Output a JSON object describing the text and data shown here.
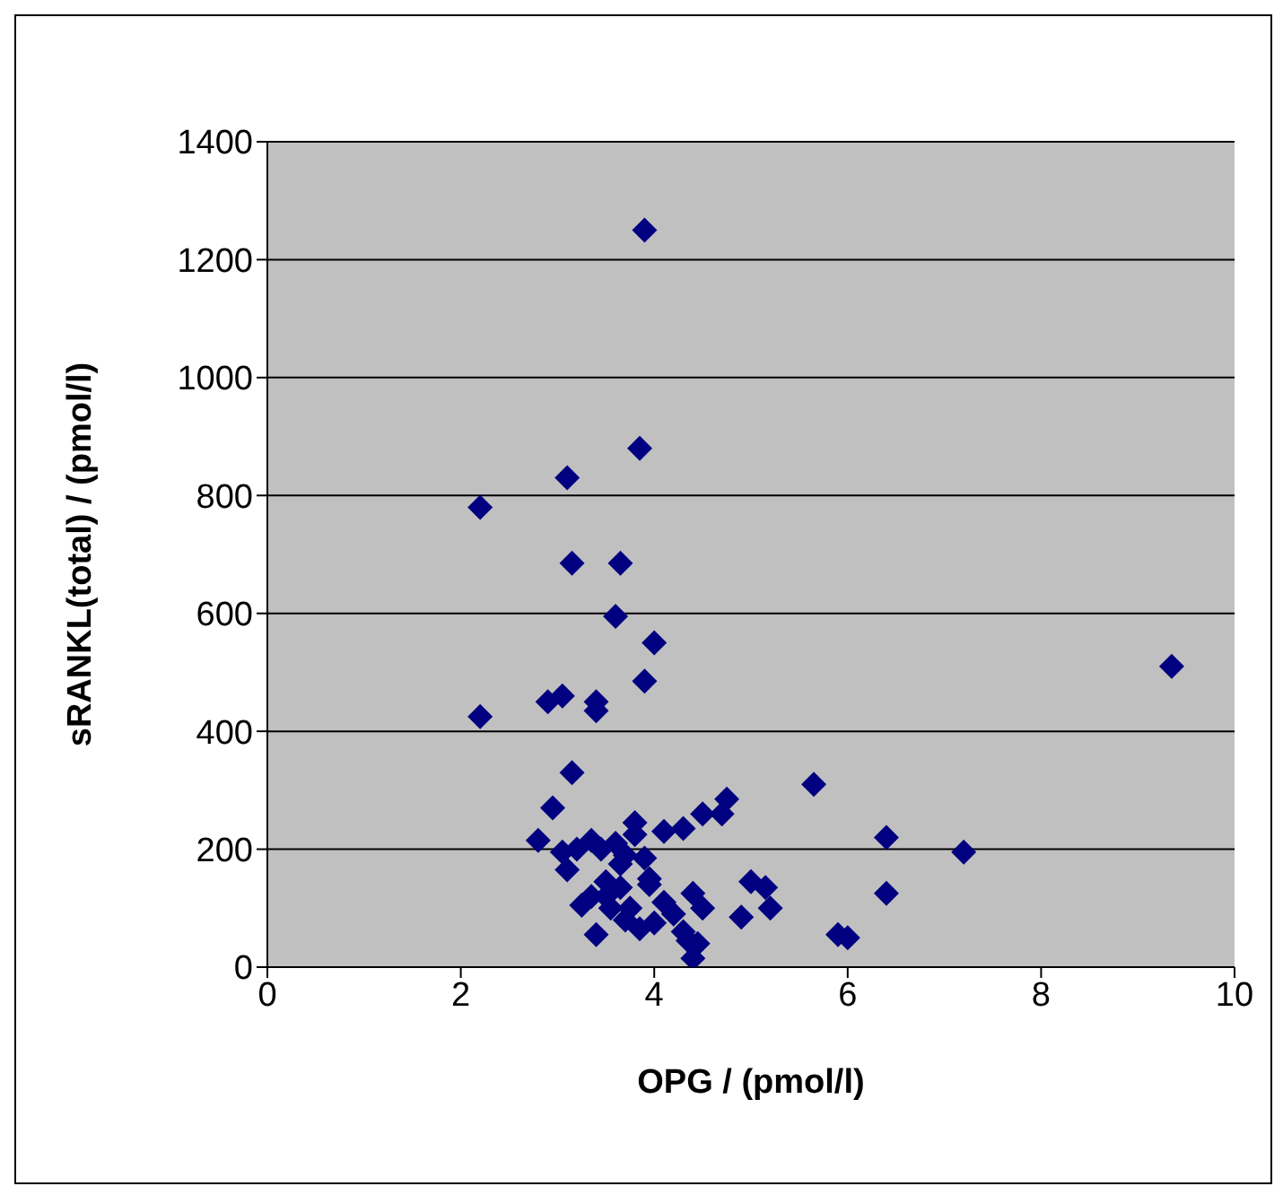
{
  "chart_data": {
    "type": "scatter",
    "xlabel": "OPG / (pmol/l)",
    "ylabel": "sRANKL(total) / (pmol/l)",
    "x": [
      2.2,
      2.2,
      2.9,
      3.05,
      3.4,
      3.4,
      3.15,
      3.1,
      3.15,
      3.65,
      3.6,
      3.9,
      3.85,
      4.0,
      3.9,
      9.35,
      2.95,
      2.8,
      3.05,
      3.1,
      3.2,
      3.35,
      3.45,
      3.6,
      3.65,
      3.7,
      3.8,
      3.8,
      3.9,
      3.95,
      4.1,
      4.3,
      4.5,
      4.7,
      4.75,
      5.65,
      6.4,
      7.2,
      6.4,
      3.25,
      3.4,
      3.5,
      3.55,
      3.65,
      3.7,
      3.75,
      3.85,
      3.95,
      4.0,
      4.1,
      4.2,
      4.3,
      4.35,
      4.4,
      4.45,
      4.4,
      4.5,
      4.9,
      5.0,
      5.15,
      5.2,
      5.9,
      6.0,
      3.35,
      3.5
    ],
    "values": [
      780,
      425,
      450,
      460,
      450,
      435,
      330,
      830,
      685,
      685,
      595,
      1250,
      880,
      550,
      485,
      510,
      270,
      215,
      195,
      165,
      200,
      215,
      200,
      210,
      175,
      190,
      225,
      245,
      185,
      150,
      230,
      235,
      260,
      260,
      285,
      310,
      220,
      195,
      125,
      105,
      55,
      120,
      100,
      135,
      80,
      100,
      65,
      140,
      75,
      110,
      90,
      60,
      45,
      125,
      40,
      15,
      100,
      85,
      145,
      135,
      100,
      55,
      50,
      120,
      145
    ],
    "color": "#000080",
    "marker": "diamond",
    "xlim": [
      0,
      10
    ],
    "xticks": [
      0,
      2,
      4,
      6,
      8,
      10
    ],
    "ylim": [
      0,
      1400
    ],
    "yticks": [
      0,
      200,
      400,
      600,
      800,
      1000,
      1200,
      1400
    ],
    "grid": "y"
  }
}
